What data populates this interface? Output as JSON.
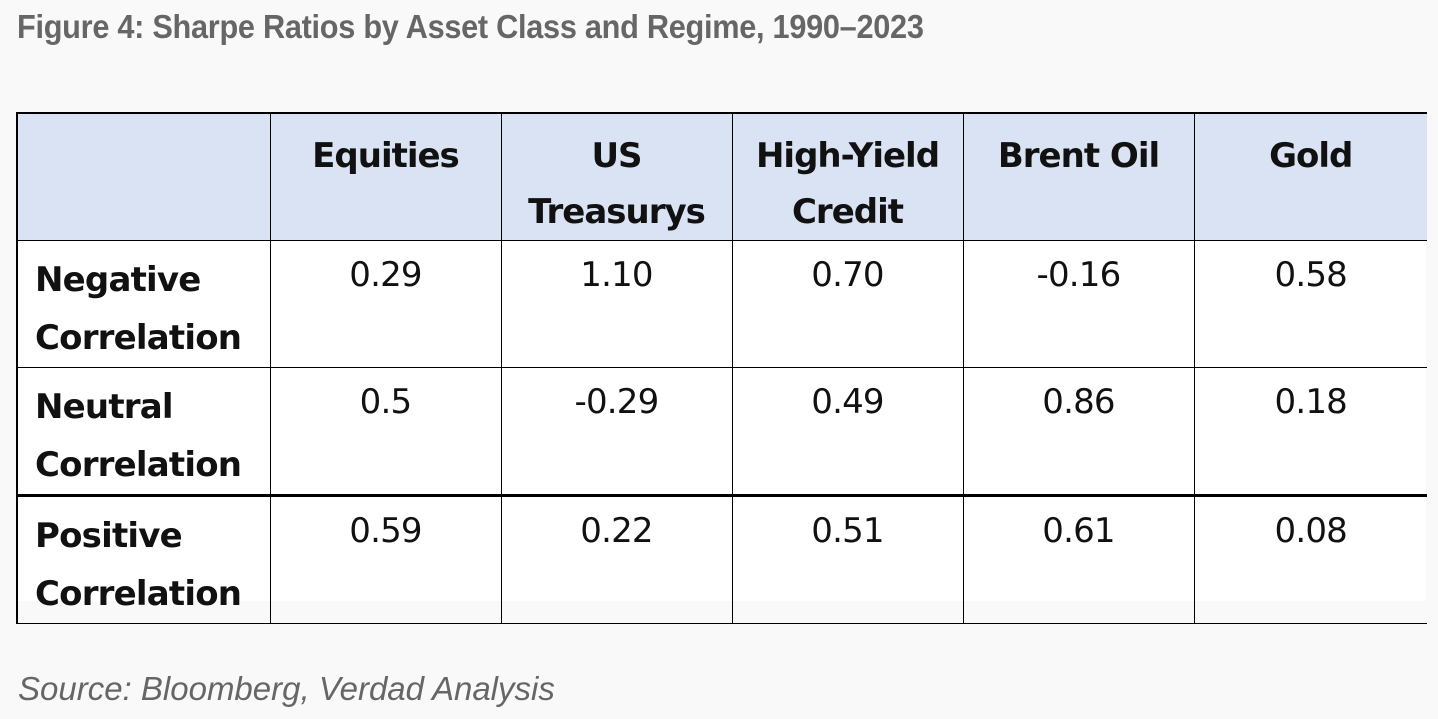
{
  "title": "Figure 4: Sharpe Ratios by Asset Class and Regime, 1990–2023",
  "source": "Source: Bloomberg, Verdad Analysis",
  "colors": {
    "header_bg": "#dae3f3",
    "title_gray": "#666666",
    "border": "#000000"
  },
  "chart_data": {
    "type": "table",
    "title": "Figure 4: Sharpe Ratios by Asset Class and Regime, 1990–2023",
    "columns": [
      {
        "line1": "Equities",
        "line2": ""
      },
      {
        "line1": "US",
        "line2": "Treasurys"
      },
      {
        "line1": "High-Yield",
        "line2": "Credit"
      },
      {
        "line1": "Brent Oil",
        "line2": ""
      },
      {
        "line1": "Gold",
        "line2": ""
      }
    ],
    "rows": [
      {
        "line1": "Negative",
        "line2": "Correlation",
        "values": [
          "0.29",
          "1.10",
          "0.70",
          "-0.16",
          "0.58"
        ]
      },
      {
        "line1": "Neutral",
        "line2": "Correlation",
        "values": [
          "0.5",
          "-0.29",
          "0.49",
          "0.86",
          "0.18"
        ]
      },
      {
        "line1": "Positive",
        "line2": "Correlation",
        "values": [
          "0.59",
          "0.22",
          "0.51",
          "0.61",
          "0.08"
        ]
      }
    ]
  }
}
